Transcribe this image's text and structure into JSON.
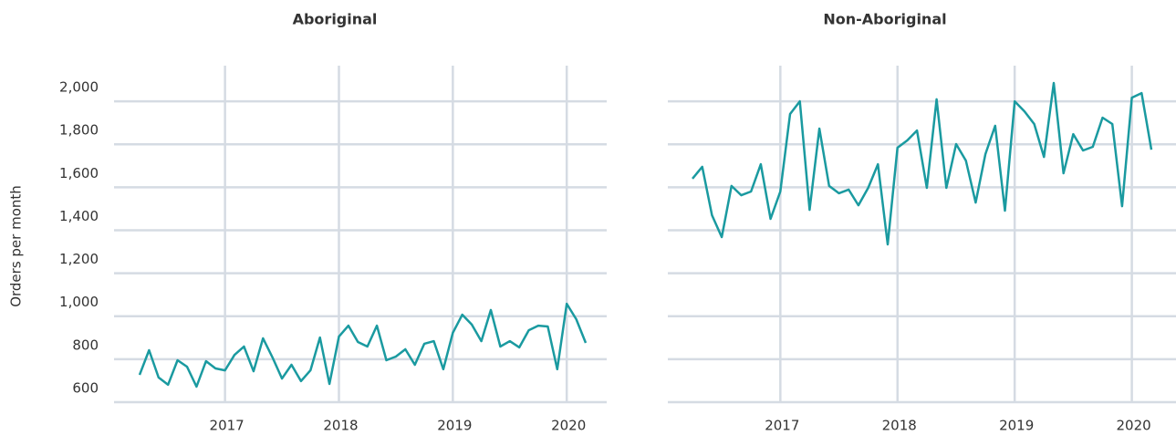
{
  "chart_data": [
    {
      "type": "line",
      "title": "Aboriginal",
      "ylabel": "Orders per month",
      "categories": [
        null,
        null,
        null,
        null,
        null,
        null,
        null,
        null,
        null,
        "2017",
        null,
        null,
        null,
        null,
        null,
        null,
        null,
        null,
        null,
        null,
        null,
        "2018",
        null,
        null,
        null,
        null,
        null,
        null,
        null,
        null,
        null,
        null,
        null,
        "2019",
        null,
        null,
        null,
        null,
        null,
        null,
        null,
        null,
        null,
        null,
        null,
        "2020",
        null,
        null
      ],
      "values": [
        727,
        842,
        715,
        681,
        795,
        765,
        672,
        791,
        757,
        748,
        820,
        859,
        744,
        897,
        808,
        710,
        774,
        698,
        748,
        901,
        685,
        905,
        956,
        880,
        859,
        956,
        795,
        812,
        846,
        774,
        872,
        884,
        753,
        922,
        1007,
        961,
        884,
        1029,
        859,
        884,
        855,
        935,
        956,
        952,
        753,
        1058,
        986,
        876
      ],
      "color": "#1a9aa0",
      "ylim": [
        600,
        2100
      ],
      "yticks": [
        600,
        800,
        {
          "value": 1000,
          "label": "1,000"
        },
        {
          "value": 1200,
          "label": "1,200"
        },
        {
          "value": 1400,
          "label": "1,400"
        },
        {
          "value": 1600,
          "label": "1,600"
        },
        {
          "value": 1800,
          "label": "1,800"
        },
        {
          "value": 2000,
          "label": "2,000"
        }
      ],
      "grid": true
    },
    {
      "type": "line",
      "title": "Non-Aboriginal",
      "categories": [
        null,
        null,
        null,
        null,
        null,
        null,
        null,
        null,
        null,
        "2017",
        null,
        null,
        null,
        null,
        null,
        null,
        null,
        null,
        null,
        null,
        null,
        "2018",
        null,
        null,
        null,
        null,
        null,
        null,
        null,
        null,
        null,
        null,
        null,
        "2019",
        null,
        null,
        null,
        null,
        null,
        null,
        null,
        null,
        null,
        null,
        null,
        "2020",
        null,
        null
      ],
      "values": [
        1640,
        1695,
        1470,
        1368,
        1606,
        1563,
        1580,
        1707,
        1453,
        1580,
        1941,
        2000,
        1495,
        1873,
        1606,
        1572,
        1589,
        1516,
        1597,
        1707,
        1334,
        1784,
        1818,
        1864,
        1597,
        2009,
        1597,
        1801,
        1724,
        1529,
        1754,
        1886,
        1491,
        2000,
        1953,
        1894,
        1741,
        2085,
        1665,
        1847,
        1771,
        1788,
        1924,
        1894,
        1512,
        2017,
        2038,
        1775
      ],
      "color": "#1a9aa0",
      "ylim": [
        600,
        2100
      ],
      "yticks": [
        600,
        800,
        1000,
        1200,
        1400,
        1600,
        1800,
        2000
      ],
      "grid": true
    }
  ]
}
